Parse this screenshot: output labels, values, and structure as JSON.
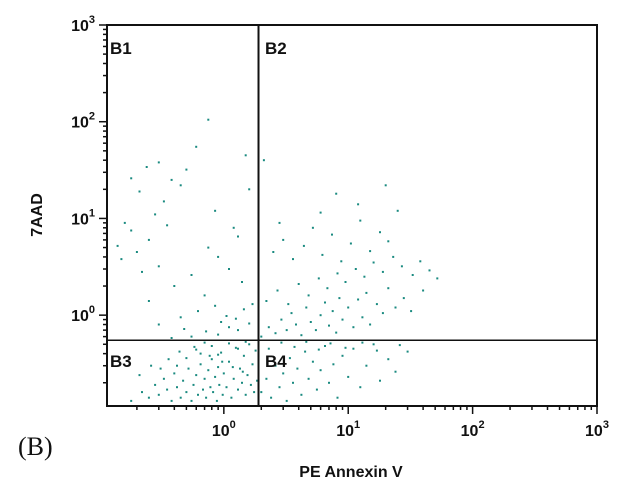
{
  "panel_label": "(B)",
  "chart_data": {
    "type": "scatter",
    "xlabel": "PE Annexin V",
    "ylabel": "7AAD",
    "x_scale": "log",
    "y_scale": "log",
    "xlim": [
      0.115,
      1000
    ],
    "ylim": [
      0.115,
      1000
    ],
    "x_ticks": [
      {
        "base": "10",
        "exp": "0",
        "value": 1
      },
      {
        "base": "10",
        "exp": "1",
        "value": 10
      },
      {
        "base": "10",
        "exp": "2",
        "value": 100
      },
      {
        "base": "10",
        "exp": "3",
        "value": 1000
      }
    ],
    "y_ticks": [
      {
        "base": "10",
        "exp": "0",
        "value": 1
      },
      {
        "base": "10",
        "exp": "1",
        "value": 10
      },
      {
        "base": "10",
        "exp": "2",
        "value": 100
      },
      {
        "base": "10",
        "exp": "3",
        "value": 1000
      }
    ],
    "quadrant_gates": {
      "x": 1.9,
      "y": 0.55
    },
    "quadrants": [
      "B1",
      "B2",
      "B3",
      "B4"
    ],
    "point_color": "#1a8a80",
    "points": [
      [
        0.18,
        0.13
      ],
      [
        0.22,
        0.16
      ],
      [
        0.25,
        0.14
      ],
      [
        0.28,
        0.19
      ],
      [
        0.3,
        0.15
      ],
      [
        0.33,
        0.22
      ],
      [
        0.35,
        0.17
      ],
      [
        0.38,
        0.13
      ],
      [
        0.4,
        0.25
      ],
      [
        0.42,
        0.18
      ],
      [
        0.45,
        0.14
      ],
      [
        0.47,
        0.21
      ],
      [
        0.5,
        0.16
      ],
      [
        0.52,
        0.28
      ],
      [
        0.55,
        0.13
      ],
      [
        0.57,
        0.19
      ],
      [
        0.6,
        0.24
      ],
      [
        0.62,
        0.15
      ],
      [
        0.65,
        0.31
      ],
      [
        0.68,
        0.17
      ],
      [
        0.7,
        0.22
      ],
      [
        0.72,
        0.14
      ],
      [
        0.75,
        0.27
      ],
      [
        0.78,
        0.18
      ],
      [
        0.8,
        0.35
      ],
      [
        0.82,
        0.16
      ],
      [
        0.85,
        0.23
      ],
      [
        0.88,
        0.13
      ],
      [
        0.9,
        0.29
      ],
      [
        0.92,
        0.19
      ],
      [
        0.95,
        0.41
      ],
      [
        0.98,
        0.15
      ],
      [
        1.0,
        0.25
      ],
      [
        1.05,
        0.18
      ],
      [
        1.1,
        0.33
      ],
      [
        1.15,
        0.14
      ],
      [
        1.2,
        0.22
      ],
      [
        1.25,
        0.46
      ],
      [
        1.3,
        0.17
      ],
      [
        1.35,
        0.28
      ],
      [
        1.4,
        0.2
      ],
      [
        1.45,
        0.38
      ],
      [
        1.5,
        0.15
      ],
      [
        1.55,
        0.24
      ],
      [
        1.6,
        0.5
      ],
      [
        1.65,
        0.19
      ],
      [
        1.7,
        0.31
      ],
      [
        1.75,
        0.16
      ],
      [
        1.8,
        0.43
      ],
      [
        1.85,
        0.21
      ],
      [
        0.5,
        0.36
      ],
      [
        0.6,
        0.44
      ],
      [
        0.7,
        0.52
      ],
      [
        0.8,
        0.48
      ],
      [
        0.9,
        0.39
      ],
      [
        1.1,
        0.51
      ],
      [
        1.3,
        0.45
      ],
      [
        1.5,
        0.53
      ],
      [
        0.42,
        0.3
      ],
      [
        0.65,
        0.4
      ],
      [
        0.21,
        0.24
      ],
      [
        0.26,
        0.3
      ],
      [
        0.31,
        0.28
      ],
      [
        0.36,
        0.35
      ],
      [
        0.44,
        0.42
      ],
      [
        0.58,
        0.47
      ],
      [
        0.77,
        0.38
      ],
      [
        0.97,
        0.33
      ],
      [
        1.18,
        0.29
      ],
      [
        1.42,
        0.26
      ],
      [
        0.55,
        0.6
      ],
      [
        0.72,
        0.68
      ],
      [
        0.9,
        0.63
      ],
      [
        1.1,
        0.75
      ],
      [
        1.3,
        0.7
      ],
      [
        1.6,
        0.82
      ],
      [
        0.48,
        0.72
      ],
      [
        0.38,
        0.58
      ],
      [
        0.95,
        0.85
      ],
      [
        1.25,
        0.92
      ],
      [
        0.3,
        0.8
      ],
      [
        0.45,
        0.95
      ],
      [
        0.62,
        1.1
      ],
      [
        0.85,
        1.25
      ],
      [
        1.05,
        0.98
      ],
      [
        1.45,
        1.15
      ],
      [
        0.25,
        1.4
      ],
      [
        0.7,
        1.6
      ],
      [
        1.7,
        1.3
      ],
      [
        0.4,
        2.0
      ],
      [
        0.15,
        3.8
      ],
      [
        0.2,
        4.5
      ],
      [
        0.25,
        6.0
      ],
      [
        0.3,
        3.2
      ],
      [
        0.18,
        7.5
      ],
      [
        0.14,
        5.2
      ],
      [
        0.22,
        2.8
      ],
      [
        0.35,
        8.5
      ],
      [
        0.28,
        11.0
      ],
      [
        0.16,
        9.0
      ],
      [
        0.18,
        26.0
      ],
      [
        0.24,
        34.0
      ],
      [
        0.3,
        38.0
      ],
      [
        0.38,
        25.0
      ],
      [
        0.21,
        19.0
      ],
      [
        0.45,
        22.0
      ],
      [
        0.33,
        15.0
      ],
      [
        0.5,
        32.0
      ],
      [
        0.6,
        55.0
      ],
      [
        0.75,
        105.0
      ],
      [
        0.85,
        12.0
      ],
      [
        1.2,
        8.0
      ],
      [
        1.5,
        45.0
      ],
      [
        1.6,
        20.0
      ],
      [
        0.9,
        4.0
      ],
      [
        1.1,
        3.0
      ],
      [
        1.4,
        2.2
      ],
      [
        0.55,
        2.6
      ],
      [
        0.75,
        5.0
      ],
      [
        1.3,
        6.5
      ],
      [
        2.0,
        0.6
      ],
      [
        2.3,
        0.75
      ],
      [
        2.6,
        0.65
      ],
      [
        2.9,
        0.9
      ],
      [
        3.2,
        0.7
      ],
      [
        3.5,
        1.05
      ],
      [
        3.8,
        0.8
      ],
      [
        4.2,
        0.62
      ],
      [
        4.6,
        1.2
      ],
      [
        5.0,
        0.85
      ],
      [
        5.5,
        0.7
      ],
      [
        6.0,
        1.0
      ],
      [
        6.5,
        1.35
      ],
      [
        7.0,
        0.78
      ],
      [
        7.5,
        1.1
      ],
      [
        8.0,
        0.66
      ],
      [
        8.5,
        1.5
      ],
      [
        9.0,
        0.9
      ],
      [
        10.0,
        1.2
      ],
      [
        11.0,
        0.75
      ],
      [
        12.0,
        1.45
      ],
      [
        13.0,
        0.95
      ],
      [
        14.0,
        1.7
      ],
      [
        15.0,
        0.8
      ],
      [
        17.0,
        1.3
      ],
      [
        19.0,
        1.05
      ],
      [
        21.0,
        1.9
      ],
      [
        24.0,
        1.2
      ],
      [
        28.0,
        1.5
      ],
      [
        32.0,
        1.1
      ],
      [
        2.2,
        1.4
      ],
      [
        2.7,
        1.8
      ],
      [
        3.3,
        1.3
      ],
      [
        4.0,
        2.1
      ],
      [
        4.8,
        1.6
      ],
      [
        5.8,
        2.4
      ],
      [
        6.8,
        1.9
      ],
      [
        8.2,
        2.7
      ],
      [
        9.5,
        2.2
      ],
      [
        11.5,
        3.0
      ],
      [
        13.5,
        2.5
      ],
      [
        16.0,
        3.5
      ],
      [
        19.0,
        2.8
      ],
      [
        23.0,
        4.0
      ],
      [
        27.0,
        3.2
      ],
      [
        33.0,
        2.6
      ],
      [
        38.0,
        3.6
      ],
      [
        45.0,
        2.9
      ],
      [
        52.0,
        2.4
      ],
      [
        40.0,
        1.8
      ],
      [
        2.5,
        4.5
      ],
      [
        3.0,
        6.0
      ],
      [
        3.6,
        3.8
      ],
      [
        4.4,
        5.2
      ],
      [
        5.2,
        8.0
      ],
      [
        6.2,
        4.2
      ],
      [
        7.4,
        6.8
      ],
      [
        8.8,
        3.6
      ],
      [
        10.5,
        5.5
      ],
      [
        12.5,
        9.5
      ],
      [
        15.0,
        4.6
      ],
      [
        18.0,
        7.2
      ],
      [
        21.0,
        5.8
      ],
      [
        25.0,
        12.0
      ],
      [
        12.0,
        14.0
      ],
      [
        20.0,
        22.0
      ],
      [
        8.0,
        18.0
      ],
      [
        2.1,
        40.0
      ],
      [
        2.8,
        9.0
      ],
      [
        6.0,
        11.5
      ],
      [
        2.0,
        0.16
      ],
      [
        2.2,
        0.22
      ],
      [
        2.4,
        0.14
      ],
      [
        2.6,
        0.3
      ],
      [
        2.8,
        0.18
      ],
      [
        3.0,
        0.25
      ],
      [
        3.2,
        0.13
      ],
      [
        3.4,
        0.36
      ],
      [
        3.6,
        0.2
      ],
      [
        3.9,
        0.28
      ],
      [
        4.2,
        0.15
      ],
      [
        4.5,
        0.42
      ],
      [
        4.8,
        0.22
      ],
      [
        5.2,
        0.33
      ],
      [
        5.6,
        0.17
      ],
      [
        6.0,
        0.27
      ],
      [
        6.5,
        0.48
      ],
      [
        7.0,
        0.2
      ],
      [
        7.6,
        0.31
      ],
      [
        8.2,
        0.14
      ],
      [
        9.0,
        0.38
      ],
      [
        10.0,
        0.23
      ],
      [
        11.0,
        0.45
      ],
      [
        12.5,
        0.18
      ],
      [
        14.0,
        0.3
      ],
      [
        16.0,
        0.5
      ],
      [
        18.0,
        0.21
      ],
      [
        21.0,
        0.35
      ],
      [
        24.0,
        0.26
      ],
      [
        30.0,
        0.42
      ],
      [
        2.3,
        0.45
      ],
      [
        2.9,
        0.52
      ],
      [
        3.7,
        0.47
      ],
      [
        4.6,
        0.53
      ],
      [
        5.8,
        0.44
      ],
      [
        7.2,
        0.51
      ],
      [
        9.5,
        0.46
      ],
      [
        13.0,
        0.52
      ],
      [
        17.0,
        0.43
      ],
      [
        26.0,
        0.49
      ]
    ]
  }
}
